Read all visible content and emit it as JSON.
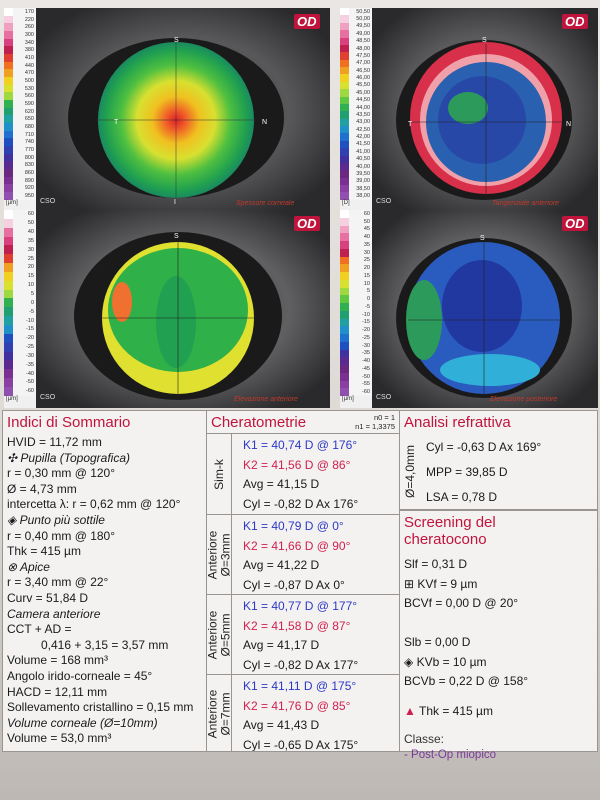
{
  "maps": {
    "top_left": {
      "od": "OD",
      "label": "Spessore corneale",
      "cso": "CSO",
      "scale": [
        "170",
        "220",
        "260",
        "300",
        "340",
        "380",
        "410",
        "440",
        "470",
        "500",
        "530",
        "560",
        "590",
        "620",
        "650",
        "680",
        "710",
        "740",
        "770",
        "800",
        "830",
        "860",
        "890",
        "920",
        "950"
      ],
      "unit": "[µm]"
    },
    "top_right": {
      "od": "OD",
      "label": "Tangenziale anteriore",
      "cso": "CSO",
      "scale": [
        "50,50",
        "50,00",
        "49,50",
        "49,00",
        "48,50",
        "48,00",
        "47,50",
        "47,00",
        "46,50",
        "46,00",
        "45,50",
        "45,00",
        "44,50",
        "44,00",
        "43,50",
        "43,00",
        "42,50",
        "42,00",
        "41,50",
        "41,00",
        "40,50",
        "40,00",
        "39,50",
        "39,00",
        "38,50",
        "38,00"
      ],
      "unit": "[D]"
    },
    "bottom_left": {
      "od": "OD",
      "label": "Elevazione anteriore",
      "cso": "CSO",
      "scale": [
        "60",
        "50",
        "40",
        "35",
        "30",
        "25",
        "20",
        "15",
        "10",
        "5",
        "0",
        "-5",
        "-10",
        "-15",
        "-20",
        "-25",
        "-30",
        "-35",
        "-40",
        "-50",
        "-60"
      ],
      "unit": "[µm]"
    },
    "bottom_right": {
      "od": "OD",
      "label": "Elevazione posteriore",
      "cso": "CSO",
      "scale": [
        "60",
        "50",
        "45",
        "40",
        "35",
        "30",
        "25",
        "20",
        "15",
        "10",
        "5",
        "0",
        "-5",
        "-10",
        "-15",
        "-20",
        "-25",
        "-30",
        "-35",
        "-40",
        "-45",
        "-50",
        "-55",
        "-60"
      ],
      "unit": "[µm]"
    }
  },
  "summary": {
    "title": "Indici di Sommario",
    "lines": [
      "HVID = 11,72 mm",
      "Pupilla (Topografica)",
      "r = 0,30 mm @ 120°",
      "Ø = 4,73 mm",
      "intercetta λ: r = 0,62 mm @ 120°",
      "Punto più sottile",
      "r = 0,40 mm @ 180°",
      "Thk = 415 µm",
      "Apice",
      "r = 3,40 mm @ 22°",
      "Curv = 51,84 D",
      "Camera anteriore",
      "CCT + AD =",
      "0,416 + 3,15 = 3,57 mm",
      "Volume = 168 mm³",
      "Angolo irido-corneale = 45°",
      "HACD = 12,11 mm",
      "Sollevamento cristallino = 0,15 mm",
      "Volume corneale (Ø=10mm)",
      "Volume = 53,0 mm³"
    ]
  },
  "keratometry": {
    "title": "Cheratometrie",
    "n0": "n0 = 1",
    "n1": "n1 = 1,3375",
    "groups": [
      {
        "label": "Sim-k",
        "k1": "K1 = 40,74 D",
        "k1_axis": "@ 176°",
        "k2": "K2 = 41,56 D",
        "k2_axis": "@ 86°",
        "avg": "Avg = 41,15 D",
        "cyl": "Cyl = -0,82 D Ax 176°"
      },
      {
        "label": "Anteriore Ø=3mm",
        "k1": "K1 = 40,79 D",
        "k1_axis": "@ 0°",
        "k2": "K2 = 41,66 D",
        "k2_axis": "@ 90°",
        "avg": "Avg = 41,22 D",
        "cyl": "Cyl = -0,87 D Ax 0°"
      },
      {
        "label": "Anteriore Ø=5mm",
        "k1": "K1 = 40,77 D",
        "k1_axis": "@ 177°",
        "k2": "K2 = 41,58 D",
        "k2_axis": "@ 87°",
        "avg": "Avg = 41,17 D",
        "cyl": "Cyl = -0,82 D Ax 177°"
      },
      {
        "label": "Anteriore Ø=7mm",
        "k1": "K1 = 41,11 D",
        "k1_axis": "@ 175°",
        "k2": "K2 = 41,76 D",
        "k2_axis": "@ 85°",
        "avg": "Avg = 41,43 D",
        "cyl": "Cyl = -0,65 D Ax 175°"
      }
    ]
  },
  "refraction": {
    "title": "Analisi refrattiva",
    "side_label": "Ø=4,0mm",
    "cyl": "Cyl = -0,63 D Ax 169°",
    "mpp": "MPP = 39,85 D",
    "lsa": "LSA = 0,78 D"
  },
  "screening": {
    "title_1": "Screening del",
    "title_2": "cheratocono",
    "slf": "Slf = 0,31 D",
    "kvf": "KVf = 9 µm",
    "bcvf": "BCVf = 0,00 D @ 20°",
    "slb": "Slb = 0,00 D",
    "kvb": "KVb = 10 µm",
    "bcvb": "BCVb = 0,22 D @ 158°",
    "thk": "Thk = 415 µm",
    "class_label": "Classe:",
    "class_value": "- Post-Op miopico"
  },
  "colors": {
    "accent": "#c0143c",
    "k1": "#2b38c8",
    "k2": "#d02050",
    "class": "#7a3a9a"
  }
}
